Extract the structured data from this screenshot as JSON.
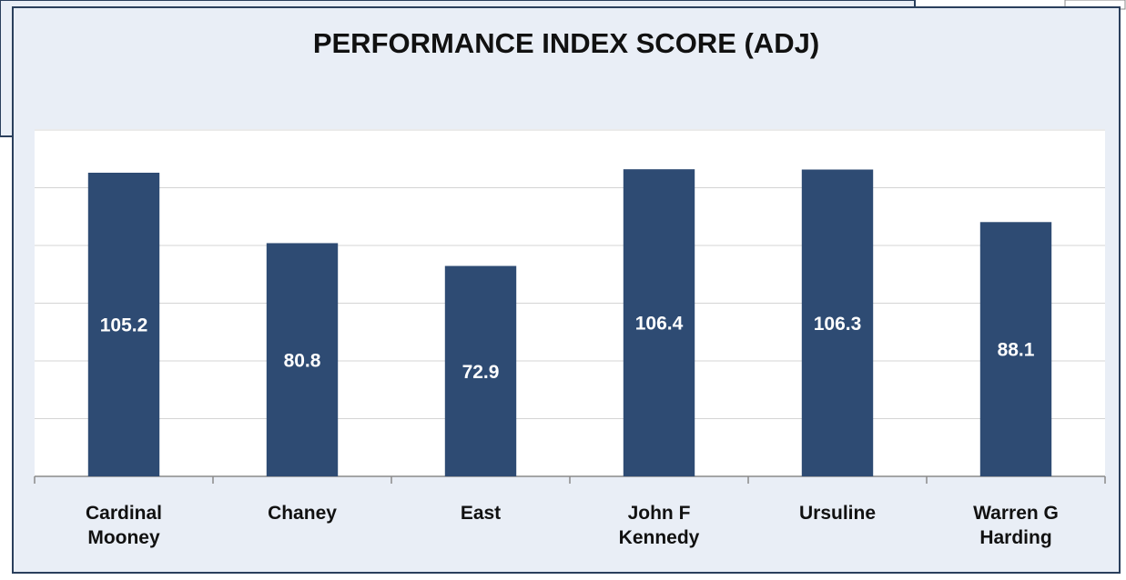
{
  "chart_data": {
    "type": "bar",
    "title": "PERFORMANCE INDEX SCORE (ADJ)",
    "categories": [
      "Cardinal Mooney",
      "Chaney",
      "East",
      "John F Kennedy",
      "Ursuline",
      "Warren G Harding"
    ],
    "values": [
      105.2,
      80.8,
      72.9,
      106.4,
      106.3,
      88.1
    ],
    "color": "#2e4b73",
    "ylim": [
      0,
      120
    ],
    "yticks": [
      0,
      20,
      40,
      60,
      80,
      100,
      120
    ],
    "grid": true
  }
}
